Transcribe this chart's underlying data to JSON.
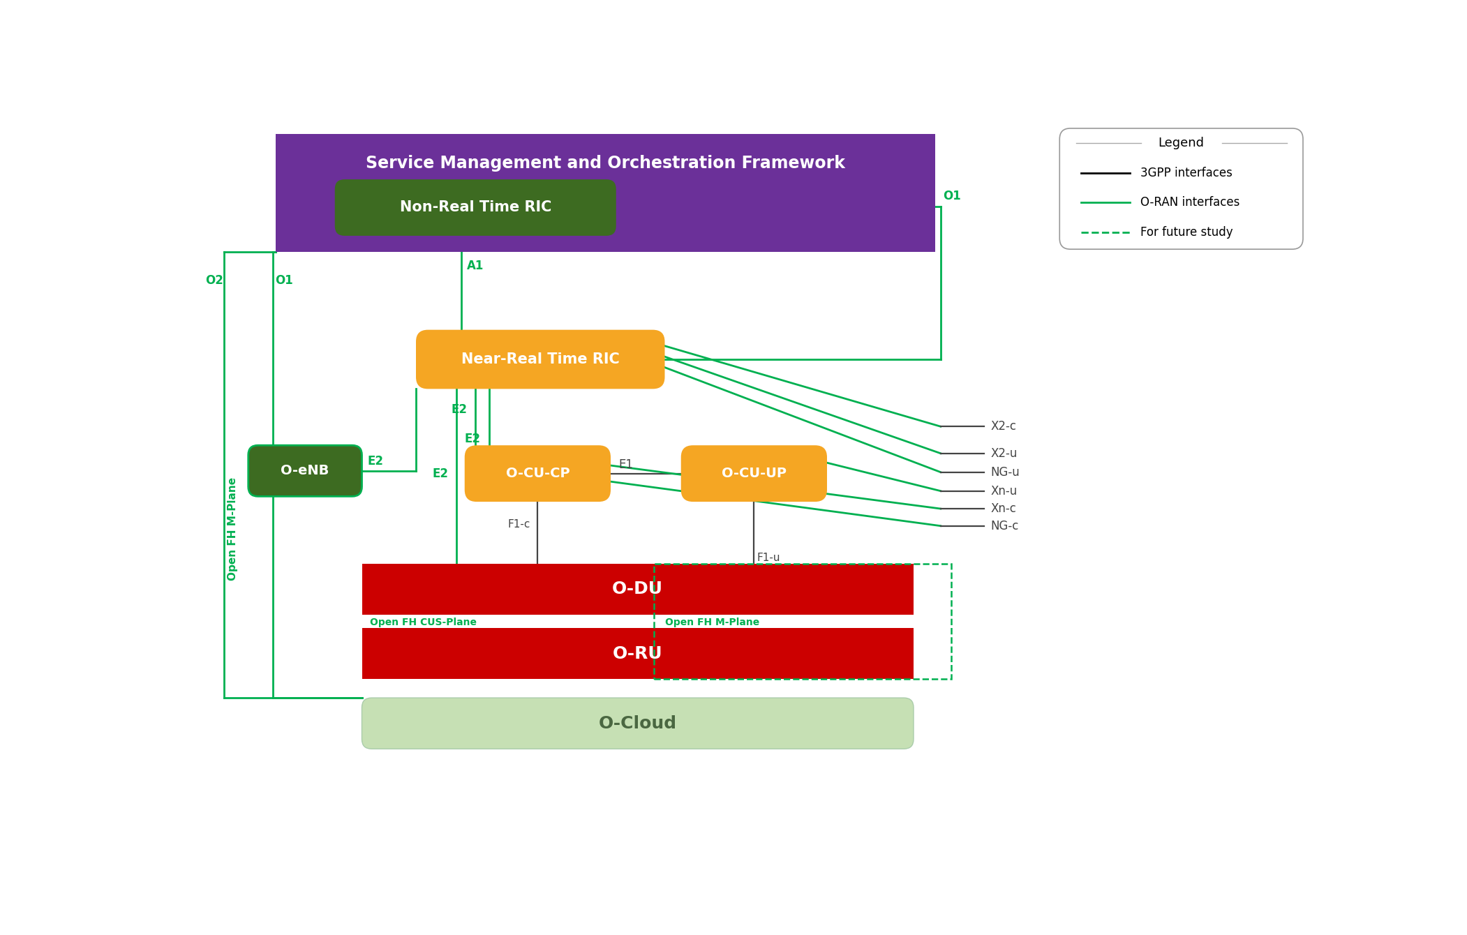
{
  "bg_color": "#ffffff",
  "oran_green": "#00b050",
  "dark_green": "#3d6b21",
  "purple": "#6b3099",
  "orange": "#f5a623",
  "red": "#cc0000",
  "light_green_box": "#c6e0b4",
  "light_green_text": "#4a6741",
  "gray": "#444444",
  "smof_title": "Service Management and Orchestration Framework",
  "nrt_ric_label": "Non-Real Time RIC",
  "nrtric_label": "Near-Real Time RIC",
  "o_cu_cp": "O-CU-CP",
  "o_cu_up": "O-CU-UP",
  "o_du": "O-DU",
  "o_ru": "O-RU",
  "o_cloud": "O-Cloud",
  "o_enb": "O-eNB",
  "legend_title": "Legend",
  "legend_3gpp": "3GPP interfaces",
  "legend_oran": "O-RAN interfaces",
  "legend_future": "For future study"
}
